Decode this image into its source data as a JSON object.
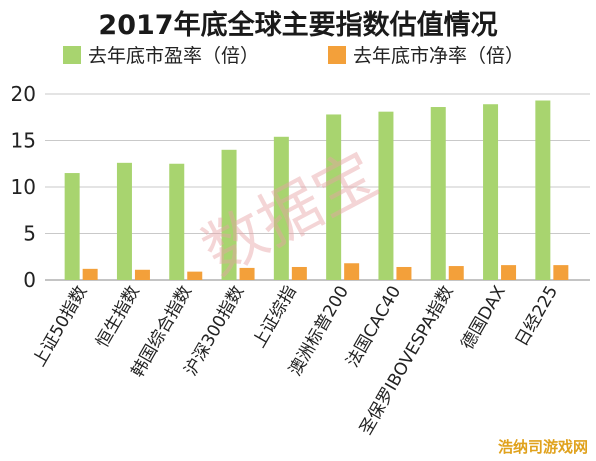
{
  "chart_data": {
    "type": "bar",
    "title": "2017年底全球主要指数估值情况",
    "categories": [
      "上证50指数",
      "恒生指数",
      "韩国综合指数",
      "沪深300指数",
      "上证综指",
      "澳洲标普200",
      "法国CAC40",
      "圣保罗IBOVESPA指数",
      "德国DAX",
      "日经225"
    ],
    "series": [
      {
        "name": "去年底市盈率（倍）",
        "color": "#a8d46f",
        "values": [
          11.5,
          12.6,
          12.5,
          14.0,
          15.4,
          17.8,
          18.1,
          18.6,
          18.9,
          19.3
        ]
      },
      {
        "name": "去年底市净率（倍）",
        "color": "#f3a03a",
        "values": [
          1.2,
          1.1,
          0.9,
          1.3,
          1.4,
          1.8,
          1.4,
          1.5,
          1.6,
          1.6
        ]
      }
    ],
    "ylim": [
      0,
      20
    ],
    "yticks": [
      "0",
      "5",
      "10",
      "15",
      "20"
    ],
    "grid": true,
    "legend_position": "top"
  },
  "watermark_text": "数据宝",
  "corner_mark_text": "浩纳司游戏网"
}
